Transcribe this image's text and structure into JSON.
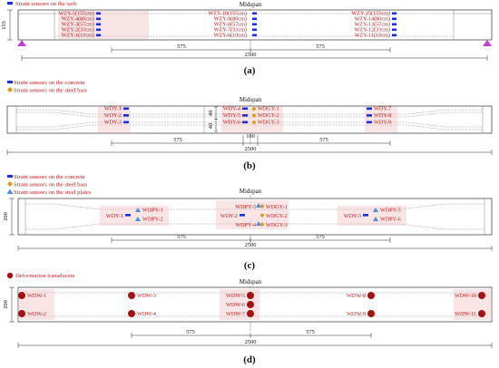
{
  "colors": {
    "concrete_sensor": "#1a2fd6",
    "steel_bar_sensor": "#d99a16",
    "steel_plate_sensor": "#4f8fd8",
    "deformation_transducer": "#a11414",
    "label_text": "#c22020",
    "support": "#c23fd6"
  },
  "panel_a": {
    "legend": "Strain sensors on the web",
    "midspan": "Midspan",
    "height": "155",
    "dim_left": "575",
    "dim_right": "575",
    "dim_total": "2500",
    "caption": "(a)",
    "columns": [
      [
        "WZY-5(155cm)",
        "WZY-4(80cm)",
        "WZY-3(57cm)",
        "WZY-2(33cm)",
        "WZY-1(10cm)"
      ],
      [
        "WZY-10(155cm)",
        "WZY-9(80cm)",
        "WZY-8(57cm)",
        "WZY-7(33cm)",
        "WZY-6(10cm)"
      ],
      [
        "WZY-15(155cm)",
        "WZY-14(80cm)",
        "WZY-13(57cm)",
        "WZY-12(33cm)",
        "WZY-11(10cm)"
      ]
    ]
  },
  "panel_b": {
    "legend_concrete": "Strain sensors on the concrete",
    "legend_bars": "Strain sensors on the steel bars",
    "midspan": "Midspan",
    "vdim_top": "40",
    "vdim_bottom": "40",
    "dim_left": "575",
    "dim_center": "100",
    "dim_right": "575",
    "dim_total": "2500",
    "caption": "(b)",
    "left_labels": [
      "WDY-1",
      "WDY-2",
      "WDY-3"
    ],
    "mid_labels": [
      "WDY-4",
      "WDY-5",
      "WDY-6"
    ],
    "mid_bar_labels": [
      "WDGY-1",
      "WDGY-2",
      "WDGY-3"
    ],
    "right_labels": [
      "WDY-7",
      "WDY-8",
      "WDY-9"
    ]
  },
  "panel_c": {
    "legend_concrete": "Strain sensors on the concrete",
    "legend_bars": "Strain sensors on the steel bars",
    "legend_plates": "Strain sensors on the steel plates",
    "midspan": "Midspan",
    "height": "200",
    "dim_left": "575",
    "dim_right": "575",
    "dim_total": "2500",
    "caption": "(c)",
    "wdy": [
      "WDY-1",
      "WDY-2",
      "WDY-3"
    ],
    "wdpy": [
      "WDPY-1",
      "WDPY-2",
      "WDPY-3",
      "WDPY-4",
      "WDPY-5",
      "WDPY-6"
    ],
    "wdgy": [
      "WDGY-1",
      "WDGY-2",
      "WDGY-3"
    ]
  },
  "panel_d": {
    "legend": "Deformation transducers",
    "midspan": "Midspan",
    "height": "200",
    "dim_left": "575",
    "dim_right": "575",
    "dim_total": "2500",
    "caption": "(d)",
    "labels": [
      "WDW-1",
      "WDW-2",
      "WDW-3",
      "WDW-4",
      "WDW-5",
      "WDW-6",
      "WDW-7",
      "WDW-8",
      "WDW-9",
      "WDW-10",
      "WDW-11"
    ]
  }
}
